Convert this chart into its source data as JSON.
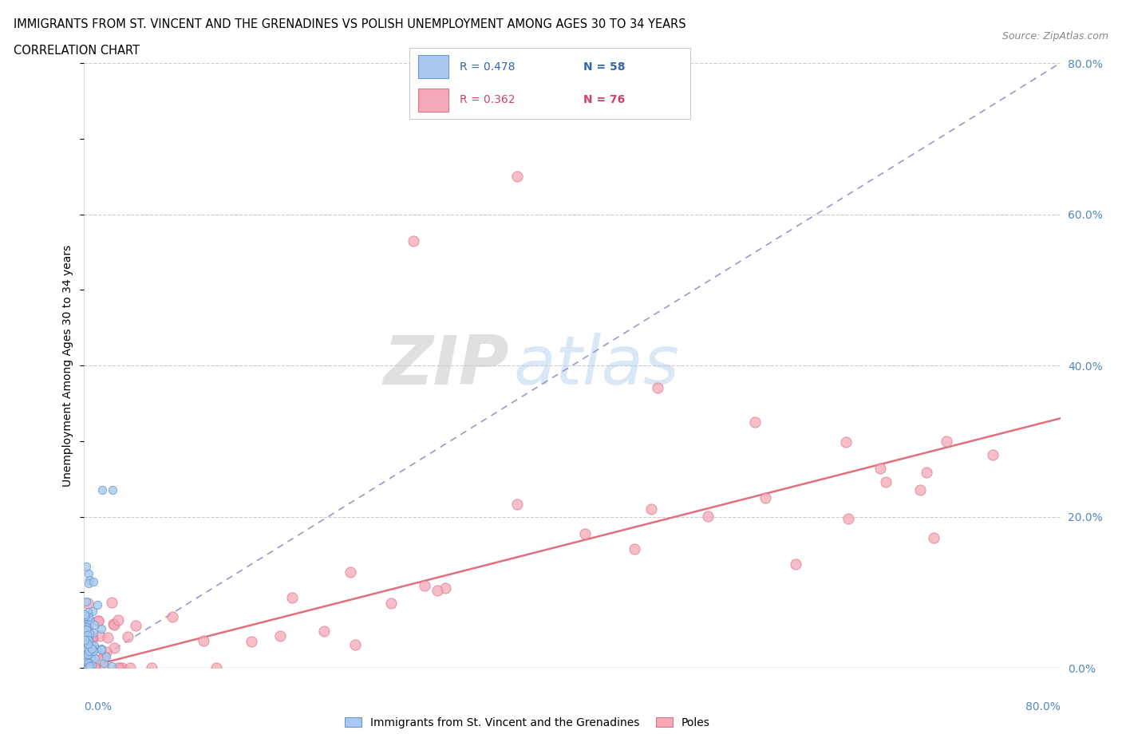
{
  "title_line1": "IMMIGRANTS FROM ST. VINCENT AND THE GRENADINES VS POLISH UNEMPLOYMENT AMONG AGES 30 TO 34 YEARS",
  "title_line2": "CORRELATION CHART",
  "source": "Source: ZipAtlas.com",
  "ylabel": "Unemployment Among Ages 30 to 34 years",
  "xmin": 0.0,
  "xmax": 0.8,
  "ymin": 0.0,
  "ymax": 0.8,
  "blue_color": "#aac8f0",
  "blue_edge": "#6699cc",
  "blue_line_color": "#99aadd",
  "pink_color": "#f5a8b8",
  "pink_edge": "#dd7788",
  "pink_line_color": "#e07080",
  "label_blue": "Immigrants from St. Vincent and the Grenadines",
  "label_pink": "Poles",
  "yticks": [
    0.0,
    0.2,
    0.4,
    0.6,
    0.8
  ],
  "legend_blue_r": "R = 0.478",
  "legend_blue_n": "N = 58",
  "legend_pink_r": "R = 0.362",
  "legend_pink_n": "N = 76"
}
